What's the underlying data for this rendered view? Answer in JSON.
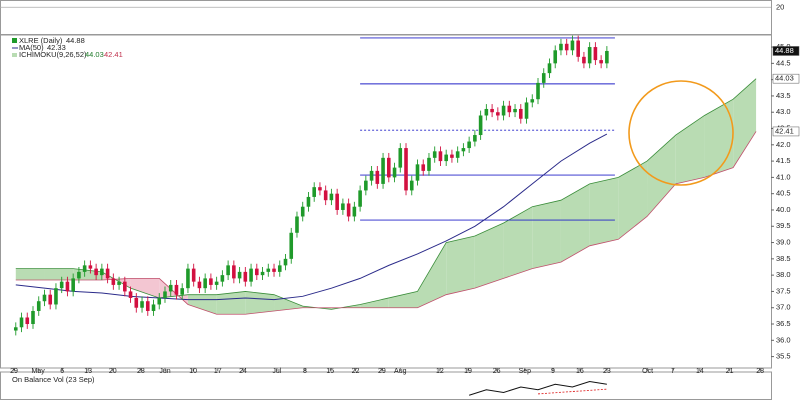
{
  "chart_data": {
    "type": "candlestick",
    "symbol": "XLRE (Daily)",
    "up_color": "#1f9a2a",
    "down_color": "#d21040",
    "xlim": [
      -5.75,
      128.6
    ],
    "ylim": [
      35.15,
      45.37
    ],
    "x": [
      -3,
      -2,
      -1,
      0,
      1,
      2,
      3,
      4,
      5,
      6,
      7,
      8,
      9,
      10,
      11,
      12,
      13,
      14,
      15,
      16,
      17,
      18,
      19,
      20,
      21,
      22,
      23,
      24,
      25,
      26,
      27,
      28,
      29,
      30,
      31,
      32,
      33,
      34,
      35,
      36,
      37,
      38,
      39,
      40,
      41,
      42,
      43,
      44,
      45,
      46,
      47,
      48,
      49,
      50,
      51,
      52,
      53,
      54,
      55,
      56,
      57,
      58,
      59,
      60,
      61,
      62,
      63,
      64,
      65,
      66,
      67,
      68,
      69,
      70,
      71,
      72,
      73,
      74,
      75,
      76,
      77,
      78,
      79,
      80,
      81,
      82,
      83,
      84,
      85,
      86,
      87,
      88,
      89,
      90,
      91,
      92,
      93,
      94,
      95,
      96,
      97,
      98,
      99,
      100
    ],
    "open": [
      36.3,
      36.4,
      36.7,
      36.5,
      36.9,
      37.2,
      37.4,
      37.1,
      37.6,
      37.8,
      37.5,
      37.9,
      38.1,
      38.3,
      38.2,
      38.0,
      38.2,
      37.9,
      37.7,
      37.8,
      37.5,
      37.3,
      37.0,
      37.2,
      36.9,
      37.1,
      37.3,
      37.5,
      37.7,
      37.4,
      37.6,
      38.2,
      37.8,
      37.6,
      37.9,
      37.7,
      37.8,
      38.0,
      38.3,
      37.9,
      38.1,
      37.8,
      38.2,
      38.0,
      38.1,
      38.2,
      38.1,
      38.3,
      38.5,
      39.3,
      39.8,
      40.1,
      40.4,
      40.7,
      40.6,
      40.3,
      40.5,
      40.0,
      40.2,
      39.8,
      40.1,
      40.6,
      40.9,
      41.2,
      40.8,
      41.6,
      41.0,
      41.3,
      41.9,
      40.6,
      40.9,
      41.4,
      41.2,
      41.6,
      41.8,
      41.5,
      41.7,
      41.6,
      41.8,
      41.9,
      42.1,
      42.3,
      42.9,
      43.1,
      43.0,
      42.9,
      43.2,
      43.0,
      43.1,
      42.8,
      43.3,
      43.4,
      43.9,
      44.2,
      44.5,
      44.9,
      45.1,
      44.9,
      45.2,
      44.7,
      44.5,
      45.0,
      44.6,
      44.5
    ],
    "high": [
      36.55,
      36.85,
      36.85,
      37.05,
      37.35,
      37.55,
      37.55,
      37.75,
      37.95,
      37.95,
      38.05,
      38.25,
      38.45,
      38.45,
      38.35,
      38.35,
      38.35,
      38.05,
      37.95,
      37.95,
      37.65,
      37.45,
      37.35,
      37.35,
      37.25,
      37.45,
      37.65,
      37.85,
      37.85,
      37.75,
      38.35,
      38.35,
      37.95,
      38.05,
      38.05,
      37.95,
      38.15,
      38.45,
      38.45,
      38.25,
      38.25,
      38.35,
      38.35,
      38.25,
      38.35,
      38.35,
      38.45,
      38.65,
      39.45,
      39.95,
      40.25,
      40.55,
      40.85,
      40.85,
      40.75,
      40.65,
      40.65,
      40.35,
      40.35,
      40.25,
      40.75,
      41.05,
      41.35,
      41.35,
      41.75,
      41.75,
      41.45,
      42.05,
      42.05,
      41.05,
      41.55,
      41.55,
      41.75,
      41.95,
      41.95,
      41.85,
      41.85,
      41.95,
      42.05,
      42.25,
      42.45,
      43.05,
      43.25,
      43.25,
      43.15,
      43.35,
      43.35,
      43.25,
      43.25,
      43.45,
      43.55,
      44.05,
      44.35,
      44.65,
      45.05,
      45.25,
      45.25,
      45.35,
      45.35,
      44.85,
      45.15,
      45.15,
      44.75,
      45.03
    ],
    "low": [
      36.15,
      36.25,
      36.35,
      36.35,
      36.75,
      37.05,
      36.95,
      36.95,
      37.45,
      37.35,
      37.35,
      37.75,
      37.95,
      38.05,
      37.85,
      37.85,
      37.75,
      37.55,
      37.55,
      37.35,
      37.15,
      36.85,
      36.85,
      36.75,
      36.75,
      36.95,
      37.15,
      37.35,
      37.25,
      37.25,
      37.45,
      37.65,
      37.45,
      37.45,
      37.55,
      37.55,
      37.65,
      37.85,
      37.75,
      37.75,
      37.65,
      37.65,
      37.85,
      37.85,
      37.95,
      37.95,
      37.95,
      38.15,
      38.35,
      39.15,
      39.65,
      39.95,
      40.25,
      40.45,
      40.15,
      40.15,
      39.85,
      39.85,
      39.65,
      39.65,
      39.95,
      40.45,
      40.75,
      40.65,
      40.65,
      40.85,
      40.85,
      41.15,
      40.45,
      40.45,
      40.75,
      41.05,
      41.05,
      41.45,
      41.35,
      41.35,
      41.45,
      41.45,
      41.65,
      41.75,
      41.95,
      42.15,
      42.75,
      42.85,
      42.75,
      42.75,
      42.85,
      42.85,
      42.65,
      42.65,
      43.15,
      43.25,
      43.75,
      44.05,
      44.35,
      44.75,
      44.75,
      44.75,
      44.55,
      44.35,
      44.35,
      44.45,
      44.35,
      44.35
    ],
    "close": [
      36.4,
      36.7,
      36.5,
      36.9,
      37.2,
      37.4,
      37.1,
      37.6,
      37.8,
      37.5,
      37.9,
      38.1,
      38.3,
      38.2,
      38.0,
      38.2,
      37.9,
      37.7,
      37.8,
      37.5,
      37.3,
      37.0,
      37.2,
      36.9,
      37.1,
      37.3,
      37.5,
      37.7,
      37.4,
      37.6,
      38.2,
      37.8,
      37.6,
      37.9,
      37.7,
      37.8,
      38.0,
      38.3,
      37.9,
      38.1,
      37.8,
      38.2,
      38.0,
      38.1,
      38.2,
      38.1,
      38.3,
      38.5,
      39.3,
      39.8,
      40.1,
      40.4,
      40.7,
      40.6,
      40.3,
      40.5,
      40.0,
      40.2,
      39.8,
      40.1,
      40.6,
      40.9,
      41.2,
      40.8,
      41.6,
      41.0,
      41.3,
      41.9,
      40.6,
      40.9,
      41.4,
      41.2,
      41.6,
      41.8,
      41.5,
      41.7,
      41.6,
      41.8,
      41.9,
      42.1,
      42.3,
      42.9,
      43.1,
      43.0,
      42.9,
      43.2,
      43.0,
      43.1,
      42.8,
      43.3,
      43.4,
      43.9,
      44.2,
      44.5,
      44.9,
      45.1,
      44.9,
      45.2,
      44.7,
      44.5,
      45.0,
      44.6,
      44.5,
      44.88
    ],
    "yticks": [
      35.5,
      {
        "value": 36,
        "label": "36.0"
      },
      36.5,
      {
        "value": 37,
        "label": "37.0"
      },
      37.5,
      {
        "value": 38,
        "label": "38.0"
      },
      38.5,
      {
        "value": 39,
        "label": "39.0"
      },
      39.5,
      {
        "value": 40,
        "label": "40.0"
      },
      40.5,
      {
        "value": 41,
        "label": "41.0"
      },
      41.5,
      {
        "value": 42,
        "label": "42.0"
      },
      42.5,
      {
        "value": 43,
        "label": "43.0"
      },
      43.5,
      {
        "value": 44,
        "label": "44.0"
      },
      44.5,
      {
        "value": 45,
        "label": "45.0"
      }
    ],
    "xticks": [
      {
        "value": -3.3,
        "label": "29"
      },
      {
        "value": 0.9,
        "label": "May"
      },
      {
        "value": 5.1,
        "label": "6"
      },
      {
        "value": 9.6,
        "label": "13"
      },
      {
        "value": 13.9,
        "label": "20"
      },
      {
        "value": 18.8,
        "label": "28"
      },
      {
        "value": 23,
        "label": "Jun"
      },
      {
        "value": 27.9,
        "label": "10"
      },
      {
        "value": 32.2,
        "label": "17"
      },
      {
        "value": 36.6,
        "label": "24"
      },
      {
        "value": 42.5,
        "label": "Jul"
      },
      {
        "value": 47.4,
        "label": "8"
      },
      {
        "value": 51.8,
        "label": "15"
      },
      {
        "value": 56.2,
        "label": "22"
      },
      {
        "value": 60.8,
        "label": "29"
      },
      {
        "value": 64,
        "label": "Aug"
      },
      {
        "value": 70.9,
        "label": "12"
      },
      {
        "value": 75.8,
        "label": "19"
      },
      {
        "value": 80.8,
        "label": "26"
      },
      {
        "value": 85.7,
        "label": "Sep"
      },
      {
        "value": 90.6,
        "label": "9"
      },
      {
        "value": 95.3,
        "label": "16"
      },
      {
        "value": 100,
        "label": "23"
      },
      {
        "value": 107.1,
        "label": "Oct"
      },
      {
        "value": 111.5,
        "label": "7"
      },
      {
        "value": 116.2,
        "label": "14"
      },
      {
        "value": 121.4,
        "label": "21"
      },
      {
        "value": 126.7,
        "label": "28"
      }
    ],
    "ma": {
      "name": "MA(50)",
      "color": "#2b2b8a",
      "x": [
        -3,
        2,
        7,
        12,
        17,
        22,
        27,
        32,
        37,
        42,
        47,
        52,
        57,
        62,
        67,
        72,
        77,
        82,
        87,
        92,
        97,
        100
      ],
      "values": [
        37.7,
        37.6,
        37.5,
        37.45,
        37.35,
        37.3,
        37.25,
        37.25,
        37.3,
        37.25,
        37.35,
        37.6,
        37.9,
        38.3,
        38.65,
        39.05,
        39.5,
        40.1,
        40.8,
        41.5,
        42.05,
        42.33
      ]
    },
    "ichimoku": {
      "name": "ICHIMOKU(9,26,52)",
      "up_color": "#b9dcb3",
      "down_color": "#f3c6d2",
      "line_a": "#3a8d3a",
      "line_b": "#c0506c",
      "x": [
        -3,
        2,
        7,
        12,
        17,
        22,
        27,
        32,
        37,
        42,
        47,
        52,
        57,
        62,
        67,
        72,
        77,
        82,
        87,
        92,
        97,
        102,
        107,
        112,
        117,
        122,
        126
      ],
      "span_a": [
        38.2,
        38.2,
        38.2,
        38.1,
        37.6,
        37.3,
        37.4,
        37.4,
        37.5,
        37.4,
        37.05,
        36.95,
        37.1,
        37.3,
        37.5,
        39.0,
        39.2,
        39.6,
        40.1,
        40.3,
        40.8,
        41.0,
        41.5,
        42.3,
        42.9,
        43.4,
        44.03
      ],
      "span_b": [
        37.85,
        37.85,
        37.85,
        37.85,
        37.9,
        37.9,
        37.1,
        36.8,
        36.8,
        36.9,
        37.0,
        37.0,
        37.0,
        37.0,
        37.0,
        37.4,
        37.6,
        37.9,
        38.2,
        38.4,
        38.9,
        39.1,
        39.8,
        40.8,
        41.0,
        41.3,
        42.41
      ]
    },
    "levels": {
      "color": "#2020c8",
      "x_start": 57,
      "x_end": 101.4,
      "values": [
        45.28,
        43.87,
        42.45,
        41.07,
        39.69
      ],
      "styles": [
        "solid",
        "solid",
        "dashed",
        "solid",
        "solid"
      ]
    },
    "top_panel": {
      "ylim": [
        14.5,
        21.5
      ],
      "yticks": [
        20
      ]
    },
    "obv": {
      "name": "On Balance Vol (23 Sep)",
      "color": "#111111",
      "ylim": [
        0,
        8
      ],
      "x": [
        76,
        79,
        82,
        85,
        88,
        91,
        94,
        97,
        100
      ],
      "values": [
        1,
        3,
        2,
        4,
        3,
        5,
        4,
        6,
        5
      ],
      "trend": {
        "color": "#e03030",
        "x": [
          88,
          100
        ],
        "values": [
          1.5,
          3.2
        ]
      }
    }
  }
}
